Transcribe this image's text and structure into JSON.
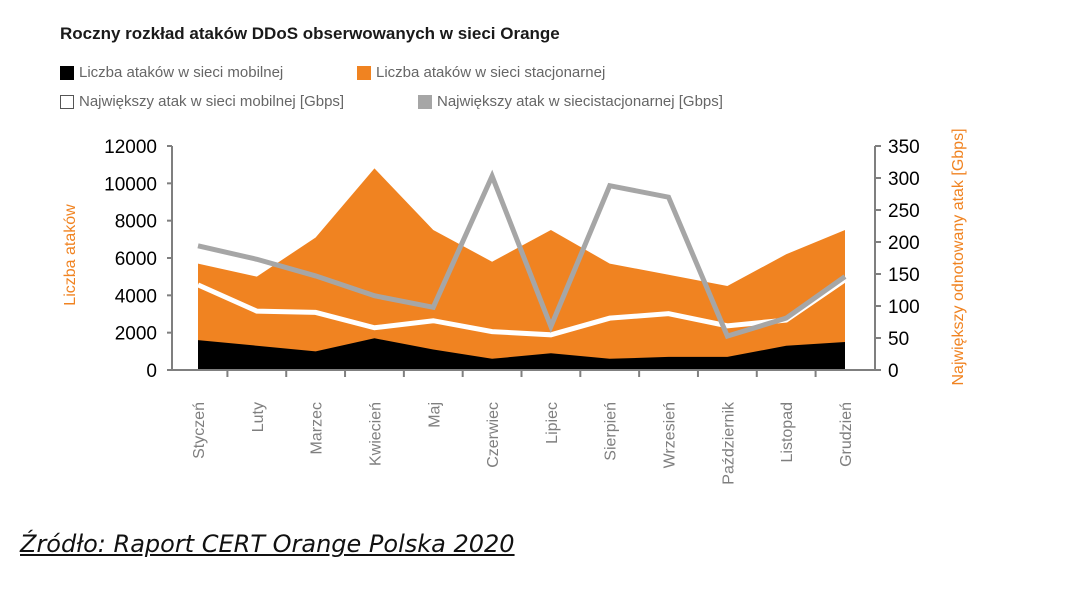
{
  "chart_data": {
    "type": "area",
    "title": "Roczny rozkład ataków DDoS obserwowanych w sieci Orange",
    "categories": [
      "Styczeń",
      "Luty",
      "Marzec",
      "Kwiecień",
      "Maj",
      "Czerwiec",
      "Lipiec",
      "Sierpień",
      "Wrzesień",
      "Październik",
      "Listopad",
      "Grudzień"
    ],
    "ylabel": "Liczba ataków",
    "y2label": "Największy odnotowany atak [Gbps]",
    "ylim": [
      0,
      12000
    ],
    "y2lim": [
      0,
      350
    ],
    "yticks": [
      "0",
      "2000",
      "4000",
      "6000",
      "8000",
      "10000",
      "12000"
    ],
    "y2ticks": [
      "0",
      "50",
      "100",
      "150",
      "200",
      "250",
      "300",
      "350"
    ],
    "series": [
      {
        "name": "Liczba ataków w sieci mobilnej",
        "type": "area",
        "axis": "left",
        "color": "#000000",
        "values": [
          1600,
          1300,
          1000,
          1700,
          1100,
          600,
          900,
          600,
          700,
          700,
          1300,
          1500
        ]
      },
      {
        "name": "Liczba ataków w sieci stacjonarnej",
        "type": "area",
        "axis": "left",
        "color": "#f08321",
        "values": [
          5700,
          5000,
          7100,
          10800,
          7500,
          5800,
          7500,
          5700,
          5100,
          4500,
          6200,
          7500
        ]
      },
      {
        "name": "Największy atak w sieci mobilnej [Gbps]",
        "type": "line",
        "axis": "right",
        "color": "#ffffff",
        "values": [
          133,
          92,
          90,
          66,
          77,
          60,
          55,
          81,
          88,
          69,
          78,
          141
        ]
      },
      {
        "name": "Największy atak w siecistacjonarnej [Gbps]",
        "type": "line",
        "axis": "right",
        "color": "#a6a6a6",
        "values": [
          194,
          173,
          147,
          116,
          98,
          303,
          68,
          288,
          270,
          53,
          81,
          146
        ]
      }
    ],
    "grid": false,
    "legend": "top-left"
  },
  "legend": [
    {
      "label": "Liczba ataków w sieci mobilnej",
      "color": "#000000",
      "border": "#000000"
    },
    {
      "label": "Liczba ataków w sieci stacjonarnej",
      "color": "#f08321",
      "border": "#f08321"
    },
    {
      "label": "Największy atak w sieci mobilnej [Gbps]",
      "color": "#ffffff",
      "border": "#555555"
    },
    {
      "label": "Największy atak w siecistacjonarnej [Gbps]",
      "color": "#a6a6a6",
      "border": "#a6a6a6"
    }
  ],
  "source_text": "Źródło: Raport CERT Orange Polska 2020"
}
